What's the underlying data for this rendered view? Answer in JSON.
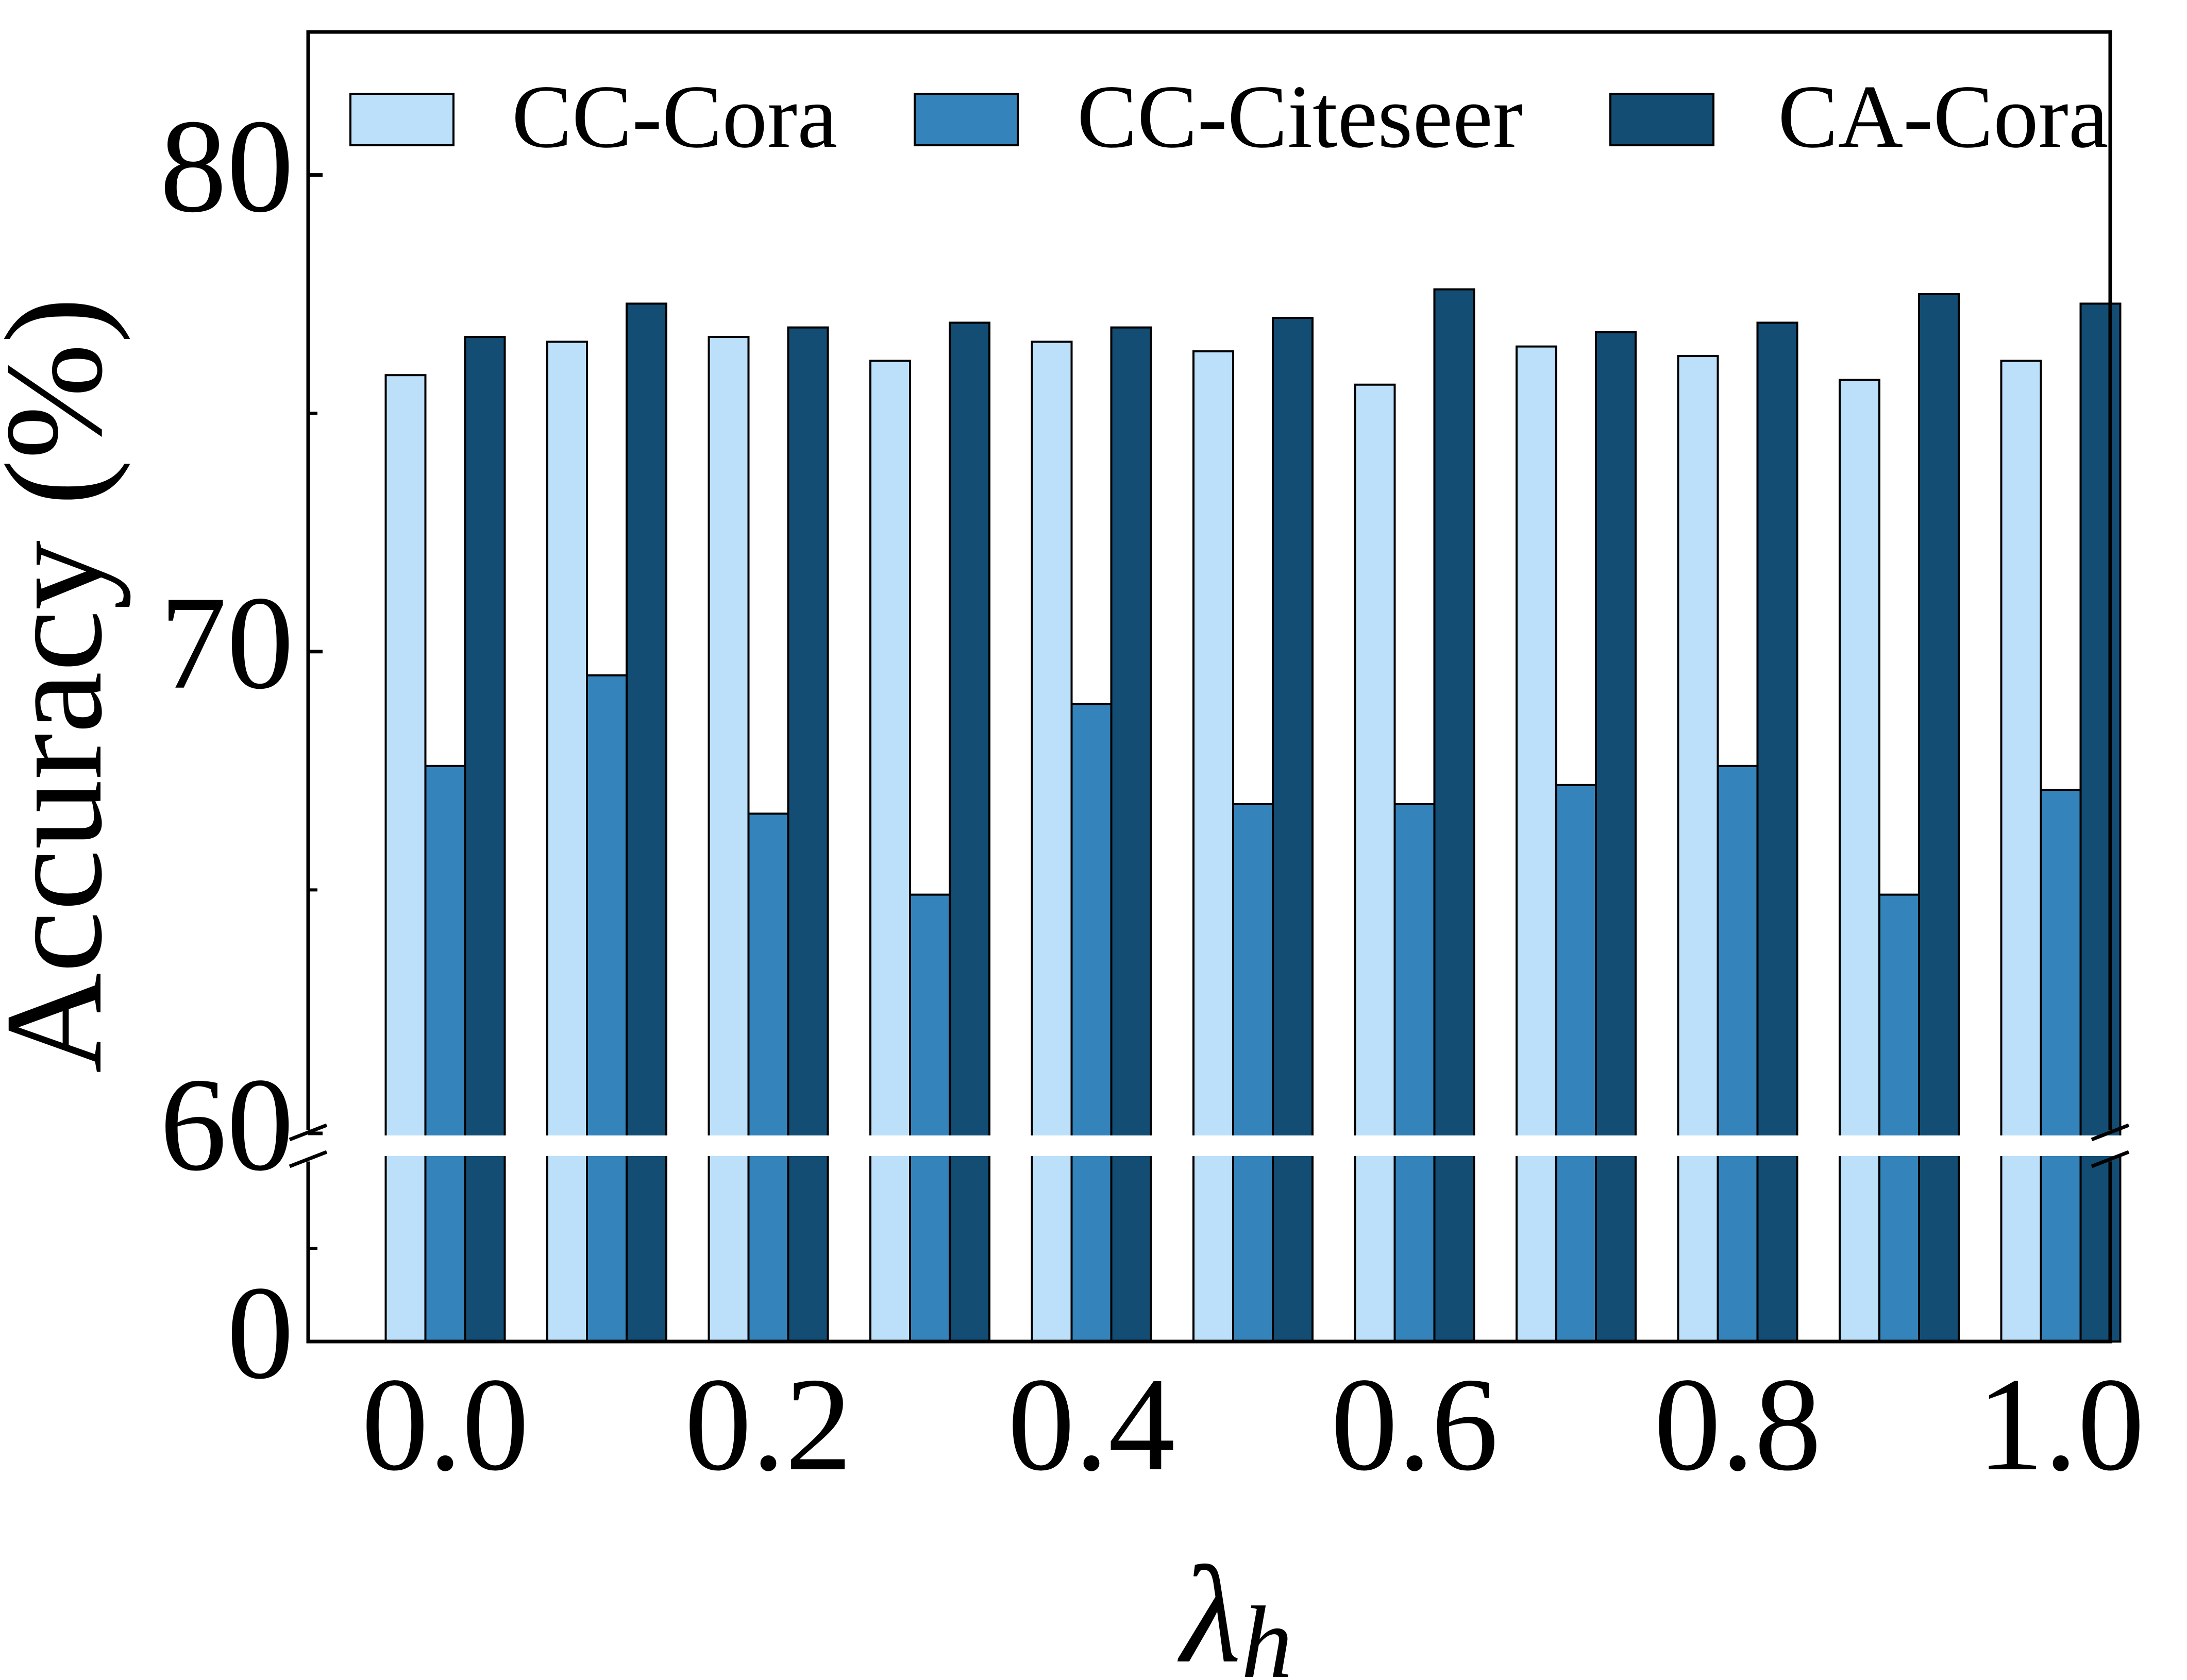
{
  "chart_data": {
    "type": "bar",
    "title": "",
    "xlabel": "λ",
    "xlabel_subscript": "h",
    "ylabel": "Accuracy (%)",
    "axis_break": {
      "lower": [
        0,
        59
      ],
      "upper": [
        60,
        83
      ],
      "break_at": 60
    },
    "ylim": [
      0,
      83
    ],
    "y_ticks_major": [
      {
        "value": 0,
        "label": "0"
      },
      {
        "value": 60,
        "label": "60"
      },
      {
        "value": 70,
        "label": "70"
      },
      {
        "value": 80,
        "label": "80"
      }
    ],
    "y_ticks_minor": [
      55,
      65,
      75
    ],
    "categories": [
      "0.0",
      "0.1",
      "0.2",
      "0.3",
      "0.4",
      "0.5",
      "0.6",
      "0.7",
      "0.8",
      "0.9",
      "1.0"
    ],
    "x_tick_labels": [
      "0.0",
      "0.2",
      "0.4",
      "0.6",
      "0.8",
      "1.0"
    ],
    "legend_position": "top",
    "series": [
      {
        "name": "CC-Cora",
        "color": "#bde0fa",
        "values": [
          75.8,
          76.5,
          76.6,
          76.1,
          76.5,
          76.3,
          75.6,
          76.4,
          76.2,
          75.7,
          76.1
        ]
      },
      {
        "name": "CC-Citeseer",
        "color": "#3483bb",
        "values": [
          67.6,
          69.5,
          66.6,
          64.9,
          68.9,
          66.8,
          66.8,
          67.2,
          67.6,
          64.9,
          67.1
        ]
      },
      {
        "name": "CA-Cora",
        "color": "#134d74",
        "values": [
          76.6,
          77.3,
          76.8,
          76.9,
          76.8,
          77.0,
          77.6,
          76.7,
          76.9,
          77.5,
          77.3
        ]
      }
    ]
  }
}
